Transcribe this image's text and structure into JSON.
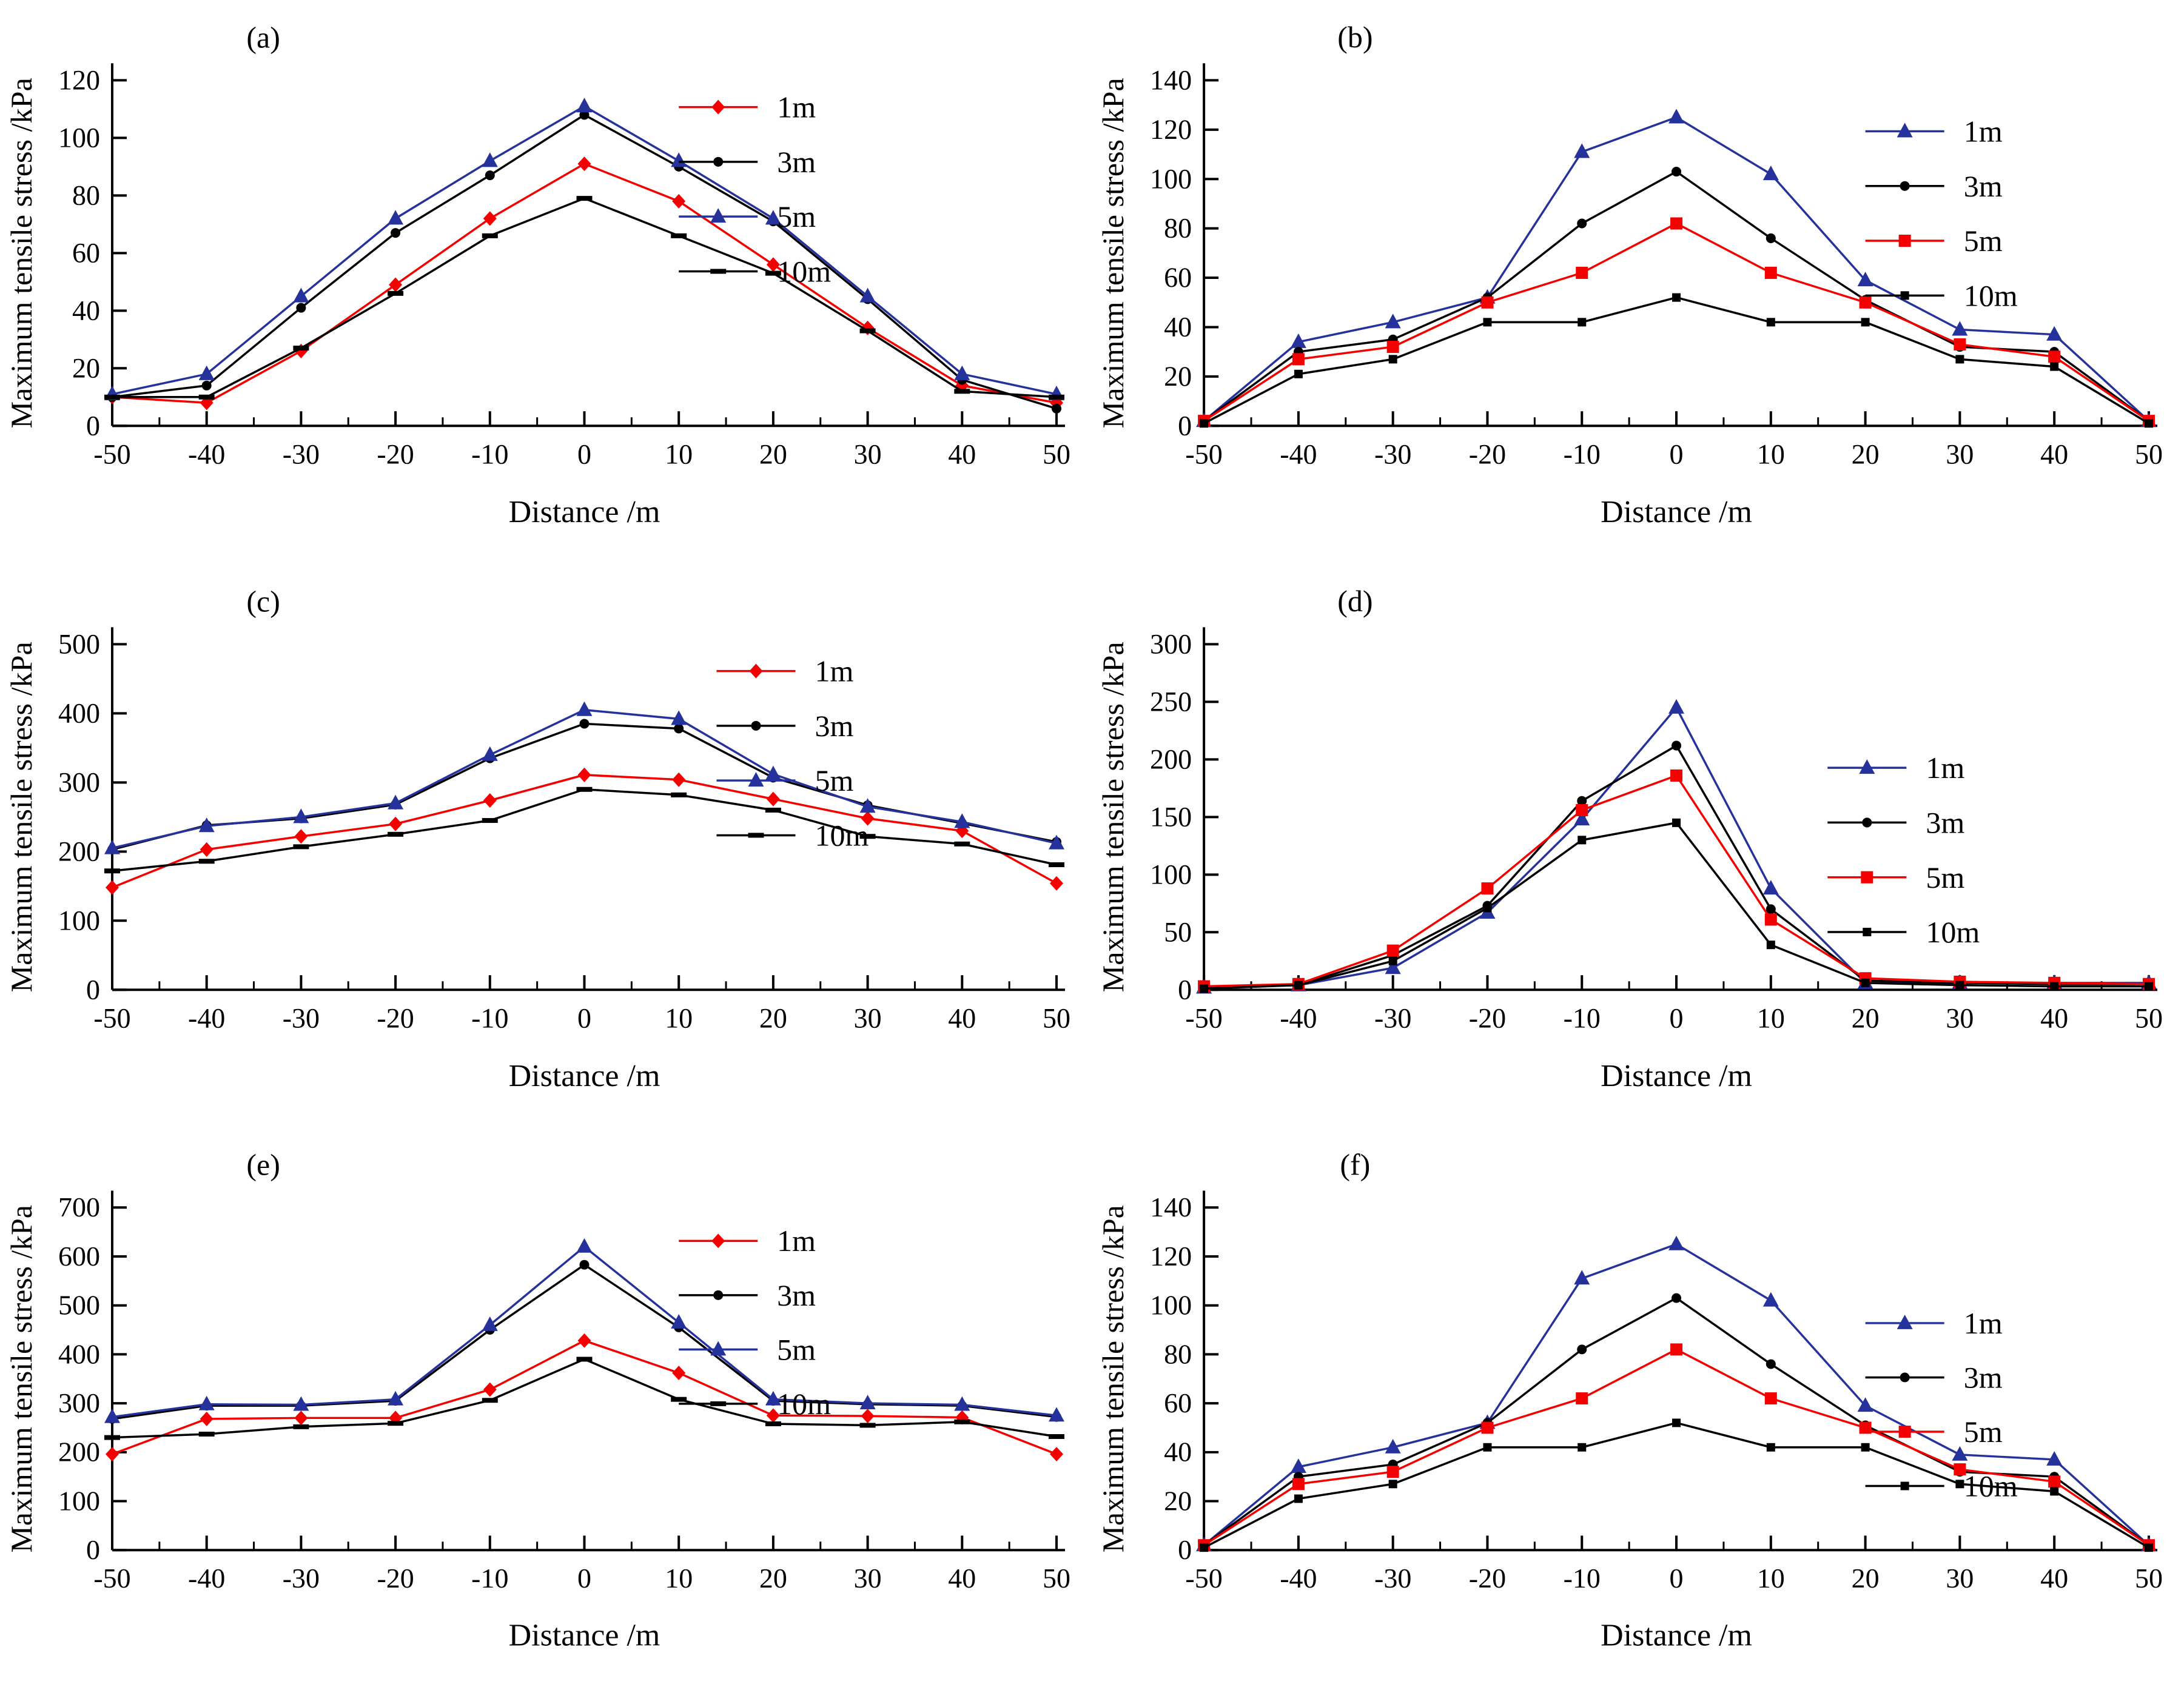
{
  "figure": {
    "background": "#ffffff",
    "xlabel": "Distance /m",
    "ylabel": "Maximum tensile stress /kPa"
  },
  "chart_data": [
    {
      "type": "line",
      "title": "(a)",
      "xlabel": "Distance /m",
      "ylabel": "Maximum tensile stress /kPa",
      "x": [
        -50,
        -40,
        -30,
        -20,
        -10,
        0,
        10,
        20,
        30,
        40,
        50
      ],
      "ylim": [
        0,
        120
      ],
      "ytick_step": 20,
      "grid": false,
      "legend_position": "inside-top-right",
      "legend_pos": {
        "x": 0.6,
        "y": 0.0
      },
      "series": [
        {
          "name": "1m",
          "color": "#f40000",
          "marker": "diamond",
          "values": [
            10,
            8,
            26,
            49,
            72,
            91,
            78,
            56,
            34,
            14,
            8
          ]
        },
        {
          "name": "3m",
          "color": "#000000",
          "marker": "dot",
          "values": [
            10,
            14,
            41,
            67,
            87,
            108,
            90,
            71,
            44,
            16,
            6
          ]
        },
        {
          "name": "5m",
          "color": "#26329b",
          "marker": "triangle",
          "values": [
            11,
            18,
            45,
            72,
            92,
            111,
            92,
            72,
            45,
            18,
            11
          ]
        },
        {
          "name": "10m",
          "color": "#000000",
          "marker": "dash",
          "values": [
            10,
            10,
            27,
            46,
            66,
            79,
            66,
            53,
            33,
            12,
            10
          ]
        }
      ]
    },
    {
      "type": "line",
      "title": "(b)",
      "xlabel": "Distance /m",
      "ylabel": "Maximum tensile stress /kPa",
      "x": [
        -50,
        -40,
        -30,
        -20,
        -10,
        0,
        10,
        20,
        30,
        40,
        50
      ],
      "ylim": [
        0,
        140
      ],
      "ytick_step": 20,
      "grid": false,
      "legend_position": "inside-right-upper",
      "legend_pos": {
        "x": 0.7,
        "y": 0.07
      },
      "series": [
        {
          "name": "1m",
          "color": "#26329b",
          "marker": "triangle",
          "values": [
            2,
            34,
            42,
            52,
            111,
            125,
            102,
            59,
            39,
            37,
            2
          ]
        },
        {
          "name": "3m",
          "color": "#000000",
          "marker": "dot",
          "values": [
            2,
            30,
            35,
            52,
            82,
            103,
            76,
            51,
            32,
            30,
            2
          ]
        },
        {
          "name": "5m",
          "color": "#f40000",
          "marker": "square",
          "values": [
            2,
            27,
            32,
            50,
            62,
            82,
            62,
            50,
            33,
            28,
            2
          ]
        },
        {
          "name": "10m",
          "color": "#000000",
          "marker": "smallsquare",
          "values": [
            1,
            21,
            27,
            42,
            42,
            52,
            42,
            42,
            27,
            24,
            1
          ]
        }
      ]
    },
    {
      "type": "line",
      "title": "(c)",
      "xlabel": "Distance /m",
      "ylabel": "Maximum tensile stress /kPa",
      "x": [
        -50,
        -40,
        -30,
        -20,
        -10,
        0,
        10,
        20,
        30,
        40,
        50
      ],
      "ylim": [
        0,
        500
      ],
      "ytick_step": 100,
      "grid": false,
      "legend_position": "inside-top-right",
      "legend_pos": {
        "x": 0.64,
        "y": 0.0
      },
      "series": [
        {
          "name": "1m",
          "color": "#f40000",
          "marker": "diamond",
          "values": [
            148,
            203,
            222,
            240,
            274,
            311,
            304,
            276,
            248,
            230,
            154
          ]
        },
        {
          "name": "3m",
          "color": "#000000",
          "marker": "dot",
          "values": [
            203,
            238,
            248,
            268,
            335,
            385,
            378,
            307,
            267,
            241,
            214
          ]
        },
        {
          "name": "5m",
          "color": "#26329b",
          "marker": "triangle",
          "values": [
            205,
            237,
            250,
            270,
            340,
            405,
            392,
            312,
            265,
            243,
            212
          ]
        },
        {
          "name": "10m",
          "color": "#000000",
          "marker": "dash",
          "values": [
            172,
            186,
            207,
            225,
            245,
            290,
            282,
            260,
            222,
            211,
            181
          ]
        }
      ]
    },
    {
      "type": "line",
      "title": "(d)",
      "xlabel": "Distance /m",
      "ylabel": "Maximum tensile stress /kPa",
      "x": [
        -50,
        -40,
        -30,
        -20,
        -10,
        0,
        10,
        20,
        30,
        40,
        50
      ],
      "ylim": [
        0,
        300
      ],
      "ytick_step": 50,
      "grid": false,
      "legend_position": "inside-right-middle",
      "legend_pos": {
        "x": 0.66,
        "y": 0.28
      },
      "series": [
        {
          "name": "1m",
          "color": "#26329b",
          "marker": "triangle",
          "values": [
            2,
            4,
            19,
            67,
            148,
            245,
            88,
            6,
            6,
            6,
            6
          ]
        },
        {
          "name": "3m",
          "color": "#000000",
          "marker": "dot",
          "values": [
            2,
            4,
            30,
            73,
            164,
            212,
            70,
            8,
            6,
            5,
            5
          ]
        },
        {
          "name": "5m",
          "color": "#f40000",
          "marker": "square",
          "values": [
            3,
            5,
            34,
            88,
            156,
            186,
            61,
            10,
            7,
            6,
            5
          ]
        },
        {
          "name": "10m",
          "color": "#000000",
          "marker": "smallsquare",
          "values": [
            1,
            4,
            25,
            71,
            130,
            145,
            39,
            6,
            4,
            3,
            3
          ]
        }
      ]
    },
    {
      "type": "line",
      "title": "(e)",
      "xlabel": "Distance /m",
      "ylabel": "Maximum tensile stress /kPa",
      "x": [
        -50,
        -40,
        -30,
        -20,
        -10,
        0,
        10,
        20,
        30,
        40,
        50
      ],
      "ylim": [
        0,
        700
      ],
      "ytick_step": 100,
      "grid": false,
      "legend_position": "inside-top-right",
      "legend_pos": {
        "x": 0.6,
        "y": 0.02
      },
      "series": [
        {
          "name": "1m",
          "color": "#f40000",
          "marker": "diamond",
          "values": [
            196,
            268,
            270,
            270,
            328,
            428,
            362,
            275,
            274,
            271,
            196
          ]
        },
        {
          "name": "3m",
          "color": "#000000",
          "marker": "dot",
          "values": [
            268,
            295,
            295,
            305,
            450,
            583,
            455,
            305,
            298,
            295,
            272
          ]
        },
        {
          "name": "5m",
          "color": "#26329b",
          "marker": "triangle",
          "values": [
            272,
            298,
            297,
            308,
            460,
            620,
            465,
            308,
            300,
            297,
            275
          ]
        },
        {
          "name": "10m",
          "color": "#000000",
          "marker": "dash",
          "values": [
            230,
            237,
            252,
            259,
            306,
            390,
            308,
            258,
            255,
            262,
            232
          ]
        }
      ]
    },
    {
      "type": "line",
      "title": "(f)",
      "xlabel": "Distance /m",
      "ylabel": "Maximum tensile stress /kPa",
      "x": [
        -50,
        -40,
        -30,
        -20,
        -10,
        0,
        10,
        20,
        30,
        40,
        50
      ],
      "ylim": [
        0,
        140
      ],
      "ytick_step": 20,
      "grid": false,
      "legend_position": "inside-right-middle",
      "legend_pos": {
        "x": 0.7,
        "y": 0.26
      },
      "series": [
        {
          "name": "1m",
          "color": "#26329b",
          "marker": "triangle",
          "values": [
            2,
            34,
            42,
            52,
            111,
            125,
            102,
            59,
            39,
            37,
            2
          ]
        },
        {
          "name": "3m",
          "color": "#000000",
          "marker": "dot",
          "values": [
            2,
            30,
            35,
            52,
            82,
            103,
            76,
            51,
            32,
            30,
            2
          ]
        },
        {
          "name": "5m",
          "color": "#f40000",
          "marker": "square",
          "values": [
            2,
            27,
            32,
            50,
            62,
            82,
            62,
            50,
            33,
            28,
            2
          ]
        },
        {
          "name": "10m",
          "color": "#000000",
          "marker": "smallsquare",
          "values": [
            1,
            21,
            27,
            42,
            42,
            52,
            42,
            42,
            27,
            24,
            1
          ]
        }
      ]
    }
  ]
}
